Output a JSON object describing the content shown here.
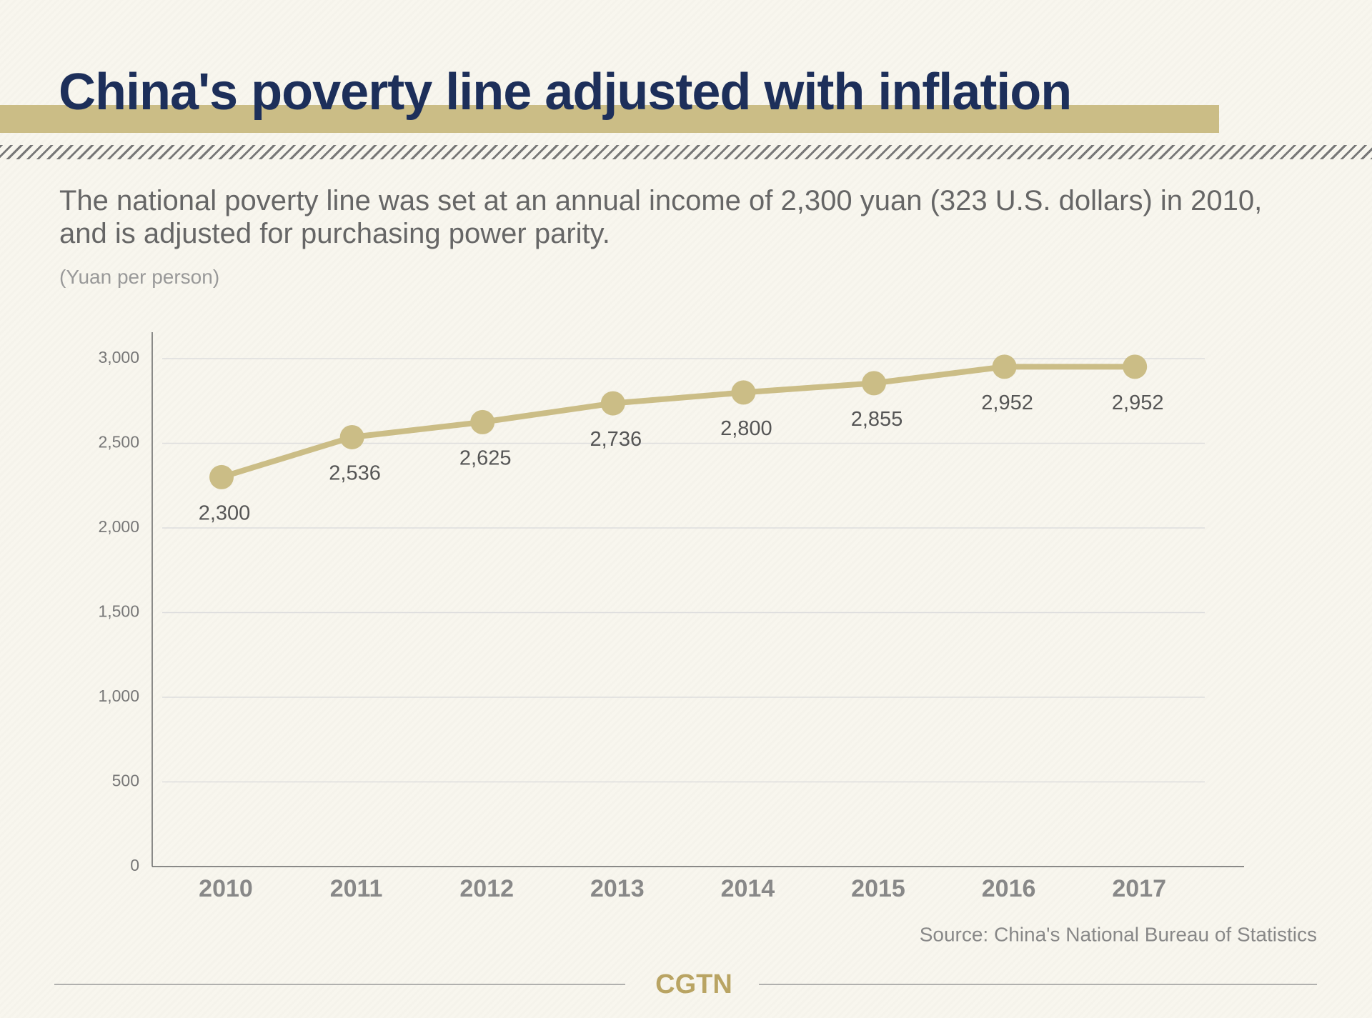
{
  "chart_data": {
    "type": "line",
    "title": "China's poverty line adjusted with inflation",
    "subtitle": "The national poverty line was set at an annual income of 2,300 yuan (323 U.S. dollars) in 2010, and is adjusted for purchasing power parity.",
    "y_label": "(Yuan per person)",
    "categories": [
      "2010",
      "2011",
      "2012",
      "2013",
      "2014",
      "2015",
      "2016",
      "2017"
    ],
    "values": [
      2300,
      2536,
      2625,
      2736,
      2800,
      2855,
      2952,
      2952
    ],
    "value_labels": [
      "2,300",
      "2,536",
      "2,625",
      "2,736",
      "2,800",
      "2,855",
      "2,952",
      "2,952"
    ],
    "color": "#cbbd86",
    "ylim": [
      0,
      3000
    ],
    "yticks": [
      0,
      500,
      {
        "value": 1000,
        "label": "1,000"
      },
      {
        "value": 1500,
        "label": "1,500"
      },
      {
        "value": 2000,
        "label": "2,000"
      },
      {
        "value": 2500,
        "label": "2,500"
      },
      {
        "value": 3000,
        "label": "3,000"
      }
    ],
    "grid": true,
    "source": "Source: China's National Bureau of Statistics",
    "logo": "CGTN"
  }
}
